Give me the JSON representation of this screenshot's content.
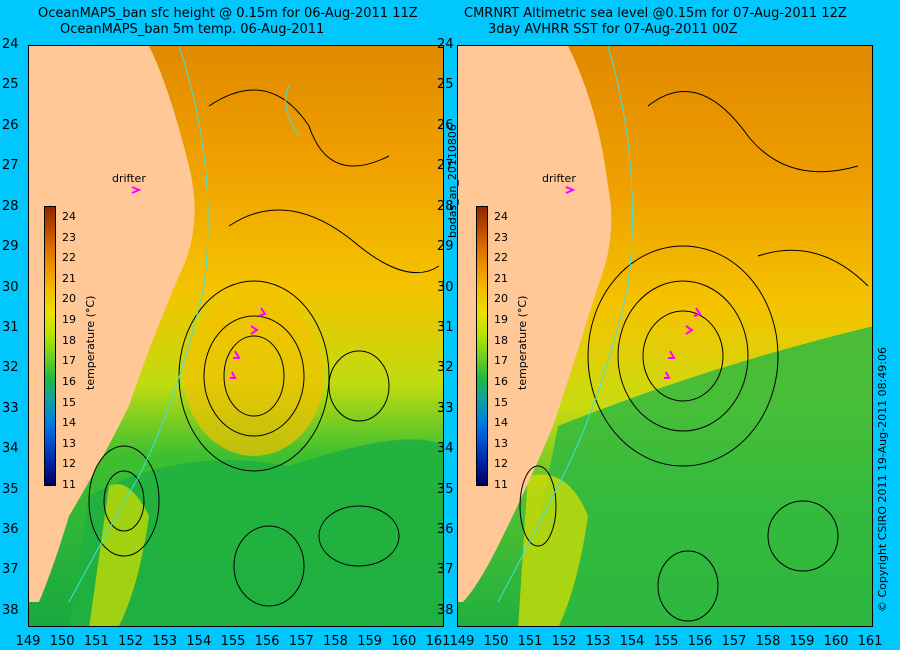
{
  "left_panel": {
    "title_line1": "OceanMAPS_ban sfc height @ 0.15m for 06-Aug-2011 11Z",
    "title_line2": "OceanMAPS_ban 5m temp. 06-Aug-2011",
    "side_label": "bodas_an_20110806",
    "drifter_label": "drifter"
  },
  "right_panel": {
    "title_line1": "CMRNRT Altimetric sea level  @0.15m  for 07-Aug-2011 12Z",
    "title_line2": "3day AVHRR SST for 07-Aug-2011 00Z",
    "side_label": "© Copyright CSIRO 2011   19-Aug-2011 08:49:06",
    "drifter_label": "drifter"
  },
  "colorbar": {
    "title": "temperature (°C)",
    "labels": [
      "24",
      "23",
      "22",
      "21",
      "20",
      "19",
      "18",
      "17",
      "16",
      "15",
      "14",
      "13",
      "12",
      "11"
    ],
    "colors": [
      "#8b2800",
      "#b84a00",
      "#e07000",
      "#f09a00",
      "#f4c000",
      "#e8e000",
      "#b8e000",
      "#70d020",
      "#20b840",
      "#10a0a0",
      "#0080e0",
      "#0050d0",
      "#0020a0",
      "#000060"
    ]
  },
  "axes": {
    "y_ticks": [
      "24",
      "25",
      "26",
      "27",
      "28",
      "29",
      "30",
      "31",
      "32",
      "33",
      "34",
      "35",
      "36",
      "37",
      "38"
    ],
    "x_ticks_left": [
      "149",
      "150",
      "151",
      "152",
      "153",
      "154",
      "155",
      "156",
      "157",
      "158",
      "159",
      "160",
      "161"
    ],
    "x_ticks_right": [
      "149",
      "150",
      "151",
      "152",
      "153",
      "154",
      "155",
      "156",
      "157",
      "158",
      "159",
      "160",
      "161"
    ]
  },
  "colors": {
    "background": "#00c8ff",
    "land": "#ffc896",
    "drifter": "#ff00ff",
    "contour": "#000000",
    "isobath": "#40e0e0"
  }
}
